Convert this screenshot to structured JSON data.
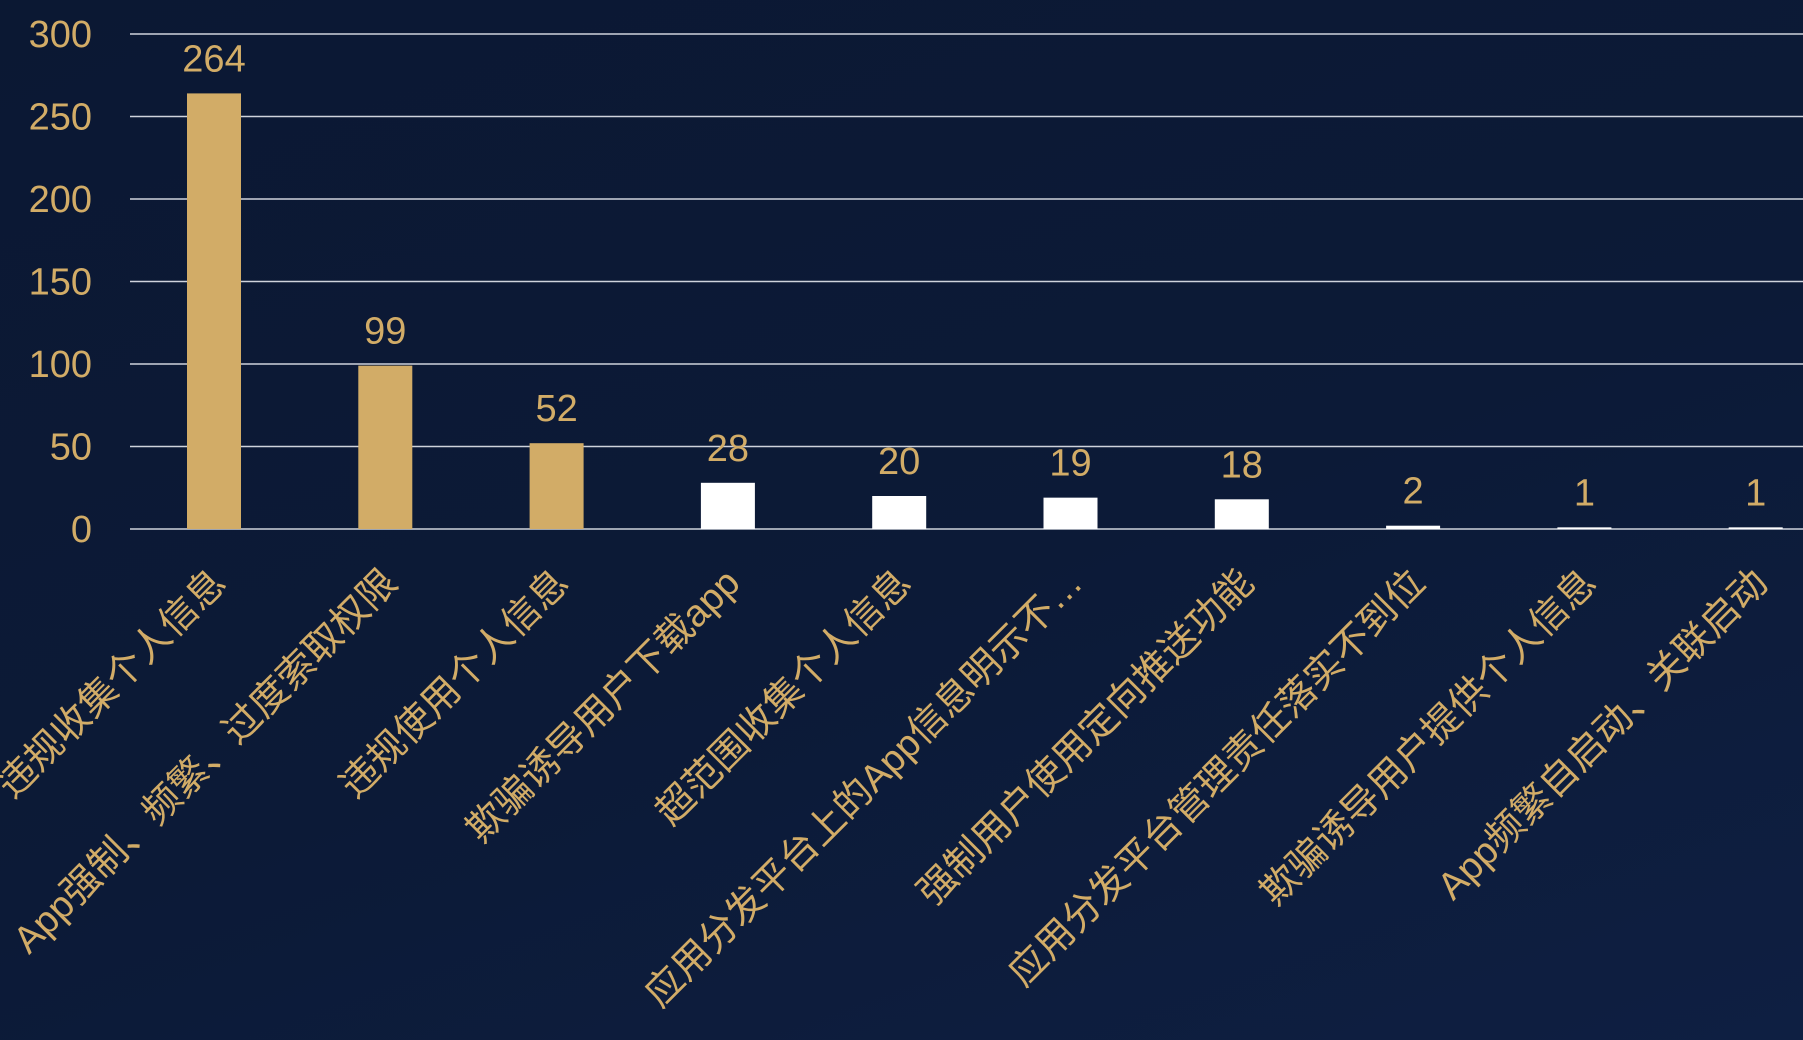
{
  "colors": {
    "background": "#0c1a36",
    "gridline": "#cfd3dc",
    "highlight_bar": "#d2ac67",
    "normal_bar": "#ffffff",
    "text": "#d2ac67"
  },
  "chart_data": {
    "type": "bar",
    "categories": [
      "违规收集个人信息",
      "App强制、频繁、过度索取权限",
      "违规使用个人信息",
      "欺骗诱导用户下载app",
      "超范围收集个人信息",
      "应用分发平台上的App信息明示不…",
      "强制用户使用定向推送功能",
      "应用分发平台管理责任落实不到位",
      "欺骗诱导用户提供个人信息",
      "App频繁自启动、关联启动"
    ],
    "values": [
      264,
      99,
      52,
      28,
      20,
      19,
      18,
      2,
      1,
      1
    ],
    "highlight_first_n": 3,
    "y_ticks": [
      0,
      50,
      100,
      150,
      200,
      250,
      300
    ],
    "ylim": [
      0,
      300
    ],
    "grid": true,
    "data_labels": true,
    "legend": "none",
    "title": "",
    "xlabel": "",
    "ylabel": ""
  }
}
